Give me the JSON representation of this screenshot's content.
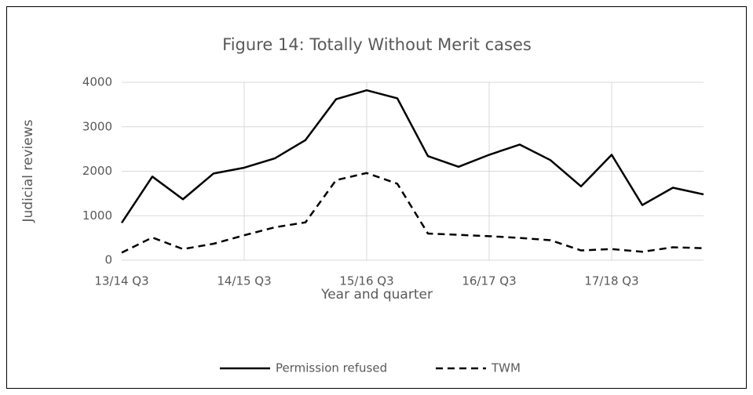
{
  "chart_data": {
    "type": "line",
    "title": "Figure 14: Totally Without Merit cases",
    "x_label": "Year and quarter",
    "y_label": "Judicial reviews",
    "categories": [
      "13/14 Q3",
      null,
      null,
      null,
      "14/15 Q3",
      null,
      null,
      null,
      "15/16 Q3",
      null,
      null,
      null,
      "16/17 Q3",
      null,
      null,
      null,
      "17/18 Q3",
      null,
      null,
      null
    ],
    "series": [
      {
        "name": "Permission refused",
        "color": "#000000",
        "style": "solid",
        "values": [
          840,
          1880,
          1370,
          1950,
          2080,
          2290,
          2700,
          3620,
          3820,
          3640,
          2340,
          2100,
          2370,
          2600,
          2250,
          1660,
          2370,
          1240,
          1630,
          1480
        ]
      },
      {
        "name": "TWM",
        "color": "#000000",
        "style": "dashed",
        "values": [
          170,
          510,
          250,
          370,
          560,
          740,
          850,
          1800,
          1960,
          1720,
          600,
          570,
          540,
          500,
          450,
          220,
          250,
          190,
          290,
          270
        ]
      }
    ],
    "ylim": [
      0,
      4000
    ],
    "yticks": [
      0,
      1000,
      2000,
      3000,
      4000
    ],
    "grid": true,
    "legend": "bottom"
  }
}
